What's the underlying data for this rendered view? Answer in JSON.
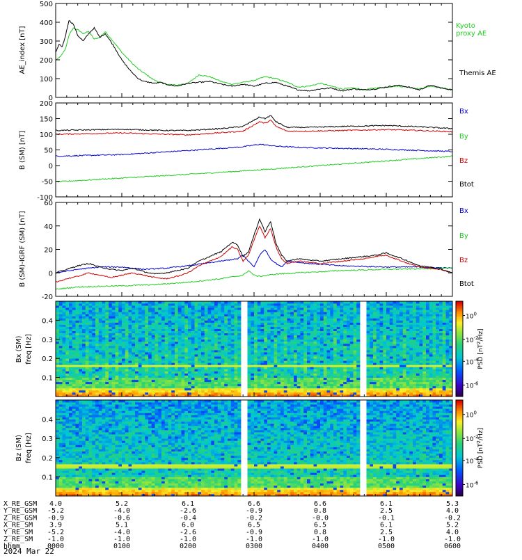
{
  "colors": {
    "black": "#000000",
    "blue": "#0000cc",
    "green": "#22cc22",
    "red": "#cc0000"
  },
  "chart_data": [
    {
      "type": "line",
      "ylabel": "AE_index [nT]",
      "ylim": [
        0,
        500
      ],
      "yticks": [
        "500",
        "400",
        "300",
        "200",
        "100",
        "0"
      ],
      "series": [
        {
          "name": "Kyoto proxy AE",
          "color": "#22cc22",
          "x": [
            0,
            3,
            6,
            9,
            12,
            16,
            20,
            25,
            30,
            35,
            40,
            45,
            52,
            60,
            68,
            75,
            80,
            85,
            90,
            95,
            100,
            110,
            120,
            130,
            140,
            150,
            160,
            170,
            180,
            190,
            200,
            210,
            220,
            230,
            240,
            250,
            260,
            270,
            280,
            290,
            300,
            310,
            320,
            330,
            340,
            350,
            360
          ],
          "values": [
            200,
            210,
            230,
            260,
            330,
            370,
            360,
            340,
            350,
            310,
            320,
            350,
            300,
            240,
            190,
            150,
            130,
            110,
            90,
            80,
            70,
            65,
            75,
            120,
            110,
            85,
            70,
            80,
            90,
            110,
            100,
            80,
            55,
            60,
            75,
            60,
            45,
            50,
            40,
            50,
            55,
            60,
            55,
            45,
            60,
            50,
            40
          ]
        },
        {
          "name": "Themis AE",
          "color": "#000000",
          "x": [
            0,
            3,
            6,
            9,
            12,
            16,
            20,
            25,
            30,
            35,
            40,
            45,
            52,
            60,
            68,
            75,
            80,
            85,
            90,
            95,
            100,
            110,
            120,
            130,
            140,
            150,
            160,
            170,
            180,
            190,
            200,
            210,
            220,
            230,
            240,
            250,
            260,
            270,
            280,
            290,
            300,
            310,
            320,
            330,
            340,
            350,
            360
          ],
          "values": [
            240,
            280,
            270,
            330,
            410,
            390,
            330,
            300,
            340,
            370,
            320,
            340,
            280,
            200,
            140,
            100,
            85,
            80,
            75,
            80,
            70,
            60,
            75,
            80,
            85,
            70,
            60,
            70,
            60,
            75,
            80,
            60,
            40,
            35,
            45,
            50,
            35,
            45,
            40,
            45,
            55,
            65,
            55,
            40,
            65,
            50,
            40
          ]
        }
      ]
    },
    {
      "type": "line",
      "ylabel": "B (SM) [nT]",
      "ylim": [
        -100,
        200
      ],
      "yticks": [
        "200",
        "150",
        "100",
        "50",
        "0",
        "-50",
        "-100"
      ],
      "series": [
        {
          "name": "Bx",
          "color": "#0000cc",
          "x": [
            0,
            60,
            120,
            150,
            170,
            185,
            200,
            220,
            260,
            300,
            360
          ],
          "values": [
            30,
            35,
            48,
            55,
            60,
            68,
            62,
            58,
            55,
            52,
            45
          ]
        },
        {
          "name": "By",
          "color": "#22cc22",
          "x": [
            0,
            60,
            120,
            180,
            240,
            300,
            360
          ],
          "values": [
            -52,
            -40,
            -28,
            -15,
            0,
            15,
            30
          ]
        },
        {
          "name": "Bz",
          "color": "#cc0000",
          "x": [
            0,
            30,
            60,
            100,
            120,
            150,
            170,
            180,
            185,
            190,
            195,
            200,
            210,
            230,
            260,
            300,
            330,
            360
          ],
          "values": [
            100,
            102,
            104,
            100,
            98,
            105,
            110,
            130,
            140,
            135,
            145,
            125,
            110,
            110,
            112,
            115,
            112,
            108
          ]
        },
        {
          "name": "Btot",
          "color": "#000000",
          "x": [
            0,
            30,
            60,
            100,
            120,
            150,
            170,
            180,
            185,
            190,
            195,
            200,
            210,
            230,
            260,
            300,
            330,
            360
          ],
          "values": [
            112,
            114,
            116,
            112,
            112,
            118,
            125,
            145,
            155,
            150,
            160,
            140,
            122,
            122,
            125,
            128,
            124,
            118
          ]
        }
      ]
    },
    {
      "type": "line",
      "ylabel": "B (SM)-IGRF (SM) [nT]",
      "ylim": [
        -20,
        60
      ],
      "yticks": [
        "60",
        "40",
        "20",
        "0",
        "-20"
      ],
      "series": [
        {
          "name": "Bx",
          "color": "#0000cc",
          "x": [
            0,
            20,
            40,
            60,
            80,
            100,
            120,
            150,
            165,
            170,
            175,
            180,
            185,
            190,
            195,
            200,
            205,
            210,
            230,
            260,
            300,
            330,
            360
          ],
          "values": [
            0,
            3,
            5,
            5,
            3,
            4,
            6,
            10,
            12,
            15,
            10,
            5,
            15,
            20,
            12,
            8,
            5,
            10,
            8,
            6,
            5,
            5,
            4
          ]
        },
        {
          "name": "By",
          "color": "#22cc22",
          "x": [
            0,
            20,
            60,
            90,
            120,
            150,
            170,
            175,
            180,
            185,
            200,
            220,
            260,
            300,
            360
          ],
          "values": [
            -14,
            -12,
            -11,
            -10,
            -8,
            -5,
            -2,
            2,
            -2,
            -3,
            -1,
            0,
            2,
            3,
            4
          ]
        },
        {
          "name": "Bz",
          "color": "#cc0000",
          "x": [
            0,
            10,
            20,
            30,
            40,
            50,
            60,
            70,
            80,
            90,
            100,
            110,
            120,
            130,
            140,
            150,
            160,
            165,
            170,
            175,
            180,
            185,
            190,
            195,
            200,
            205,
            210,
            220,
            240,
            260,
            280,
            290,
            300,
            320,
            330,
            340,
            350,
            360
          ],
          "values": [
            -8,
            -5,
            -3,
            0,
            -2,
            -4,
            -2,
            0,
            -2,
            -4,
            -5,
            -3,
            0,
            6,
            10,
            14,
            22,
            20,
            10,
            15,
            28,
            40,
            30,
            38,
            22,
            12,
            8,
            10,
            8,
            10,
            12,
            14,
            15,
            8,
            5,
            4,
            3,
            0
          ]
        },
        {
          "name": "Btot",
          "color": "#000000",
          "x": [
            0,
            10,
            20,
            30,
            40,
            50,
            60,
            70,
            80,
            90,
            100,
            110,
            120,
            130,
            140,
            150,
            160,
            165,
            170,
            175,
            180,
            185,
            190,
            195,
            200,
            205,
            210,
            220,
            240,
            260,
            280,
            290,
            300,
            320,
            330,
            340,
            350,
            360
          ],
          "values": [
            0,
            3,
            6,
            8,
            5,
            3,
            2,
            4,
            1,
            -1,
            0,
            2,
            4,
            10,
            14,
            18,
            26,
            24,
            14,
            18,
            32,
            46,
            35,
            44,
            25,
            15,
            10,
            12,
            10,
            12,
            14,
            15,
            17,
            10,
            6,
            5,
            3,
            0
          ]
        }
      ]
    },
    {
      "type": "heatmap",
      "ylabel": "Bx (SM) freq [Hz]",
      "ylim": [
        0,
        0.5
      ],
      "yticks": [
        "0.4",
        "0.3",
        "0.2",
        "0.1"
      ],
      "colorbar_label": "PSD [nT^2/Hz]",
      "colorbar_ticks": [
        "10^0",
        "10^-2",
        "10^-4",
        "10^-6"
      ],
      "gaps_x": [
        [
          168,
          174
        ],
        [
          275,
          281
        ]
      ]
    },
    {
      "type": "heatmap",
      "ylabel": "Bz (SM) freq [Hz]",
      "ylim": [
        0,
        0.5
      ],
      "yticks": [
        "0.4",
        "0.3",
        "0.2",
        "0.1"
      ],
      "colorbar_label": "PSD [nT^2/Hz]",
      "colorbar_ticks": [
        "10^0",
        "10^-2",
        "10^-4",
        "10^-6"
      ],
      "gaps_x": [
        [
          168,
          174
        ],
        [
          275,
          281
        ]
      ]
    }
  ],
  "ephemeris": {
    "row_labels": [
      "X_RE_GSM",
      "Y_RE_GSM",
      "Z_RE_GSM",
      "X_RE_SM",
      "Y_RE_SM",
      "Z_RE_SM",
      "hhmm"
    ],
    "columns": [
      [
        "4.0",
        "-5.2",
        "-0.9",
        "3.9",
        "-5.2",
        "-1.0",
        "0000"
      ],
      [
        "5.2",
        "-4.0",
        "-0.6",
        "5.1",
        "-4.0",
        "-1.0",
        "0100"
      ],
      [
        "6.1",
        "-2.6",
        "-0.4",
        "6.0",
        "-2.6",
        "-1.0",
        "0200"
      ],
      [
        "6.6",
        "-0.9",
        "-0.2",
        "6.5",
        "-0.9",
        "-1.0",
        "0300"
      ],
      [
        "6.6",
        "0.8",
        "-0.0",
        "6.5",
        "0.8",
        "-1.0",
        "0400"
      ],
      [
        "6.1",
        "2.5",
        "-0.1",
        "6.1",
        "2.5",
        "-1.0",
        "0500"
      ],
      [
        "5.3",
        "4.0",
        "-0.2",
        "5.2",
        "4.0",
        "-1.0",
        "0600"
      ]
    ],
    "date": "2024 Mar 22"
  }
}
